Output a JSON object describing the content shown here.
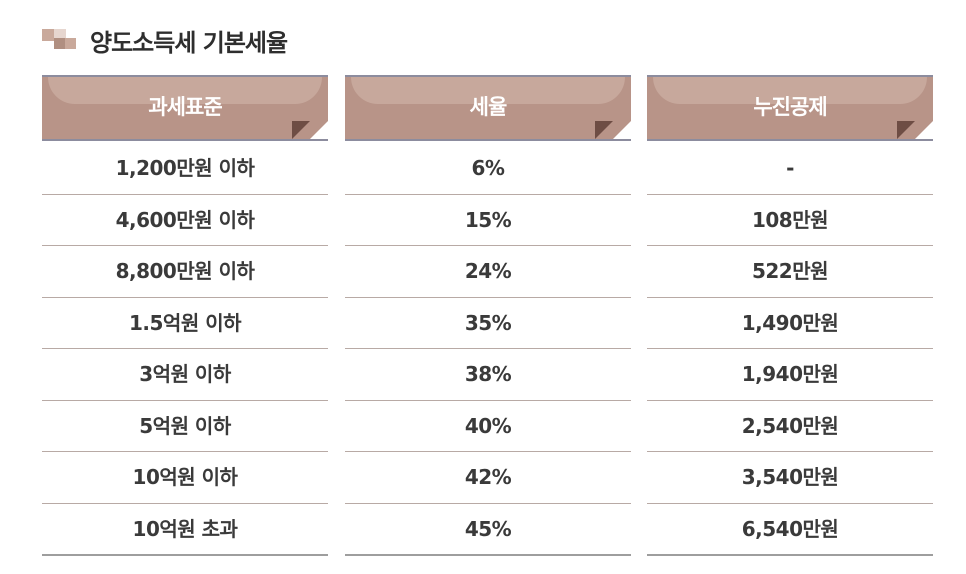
{
  "title": "양도소득세 기본세율",
  "icon": "title-squares-icon",
  "colors": {
    "header_bg": "#b89488",
    "header_highlight": "#c7a89c",
    "header_border": "#8c8c9e",
    "row_border": "#b8aaa5"
  },
  "columns": [
    {
      "header": "과세표준",
      "cells": [
        "1,200만원 이하",
        "4,600만원 이하",
        "8,800만원 이하",
        "1.5억원 이하",
        "3억원 이하",
        "5억원 이하",
        "10억원 이하",
        "10억원 초과"
      ]
    },
    {
      "header": "세율",
      "cells": [
        "6%",
        "15%",
        "24%",
        "35%",
        "38%",
        "40%",
        "42%",
        "45%"
      ]
    },
    {
      "header": "누진공제",
      "cells": [
        "-",
        "108만원",
        "522만원",
        "1,490만원",
        "1,940만원",
        "2,540만원",
        "3,540만원",
        "6,540만원"
      ]
    }
  ]
}
